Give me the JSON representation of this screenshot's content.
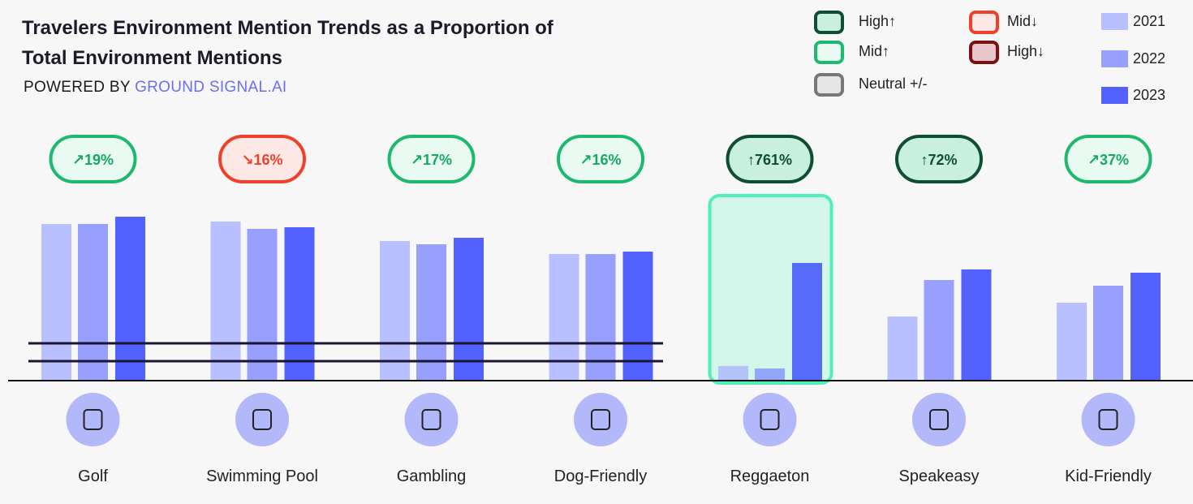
{
  "chart_data": {
    "type": "bar",
    "title": "Travelers Environment Mention Trends as a Proportion of Total Environment Mentions",
    "powered_by": "POWERED BY",
    "brand": "GROUND SIGNAL.AI",
    "categories": [
      "Golf",
      "Swimming Pool",
      "Gambling",
      "Dog-Friendly",
      "Reggaeton",
      "Speakeasy",
      "Kid-Friendly"
    ],
    "series": [
      {
        "name": "2021",
        "color": "#b9c0ff",
        "values": [
          193,
          196,
          172,
          156,
          18,
          79,
          96
        ]
      },
      {
        "name": "2022",
        "color": "#97a0ff",
        "values": [
          193,
          187,
          168,
          156,
          15,
          124,
          117
        ]
      },
      {
        "name": "2023",
        "color": "#5361ff",
        "values": [
          202,
          189,
          176,
          159,
          145,
          137,
          133
        ]
      }
    ],
    "trend_legend": [
      {
        "label": "High↑",
        "fill": "#c9f0df",
        "stroke": "#0e4e33",
        "text": "#0e4e33"
      },
      {
        "label": "Mid↑",
        "fill": "#e8faf1",
        "stroke": "#1db96e",
        "text": "#17a862"
      },
      {
        "label": "Neutral +/-",
        "fill": "#e5e5e5",
        "stroke": "#777777",
        "text": "#555555"
      },
      {
        "label": "Mid↓",
        "fill": "#fde8e6",
        "stroke": "#f0402b",
        "text": "#f0402b"
      },
      {
        "label": "High↓",
        "fill": "#e8c6cc",
        "stroke": "#7a1010",
        "text": "#7a1010"
      }
    ],
    "changes": [
      {
        "label": "↗19%",
        "trend": 1
      },
      {
        "label": "↘16%",
        "trend": 3
      },
      {
        "label": "↗17%",
        "trend": 1
      },
      {
        "label": "↗16%",
        "trend": 1
      },
      {
        "label": "↑761%",
        "trend": 0
      },
      {
        "label": "↑72%",
        "trend": 0
      },
      {
        "label": "↗37%",
        "trend": 1
      }
    ],
    "highlight": 4,
    "broken_axis": true
  }
}
